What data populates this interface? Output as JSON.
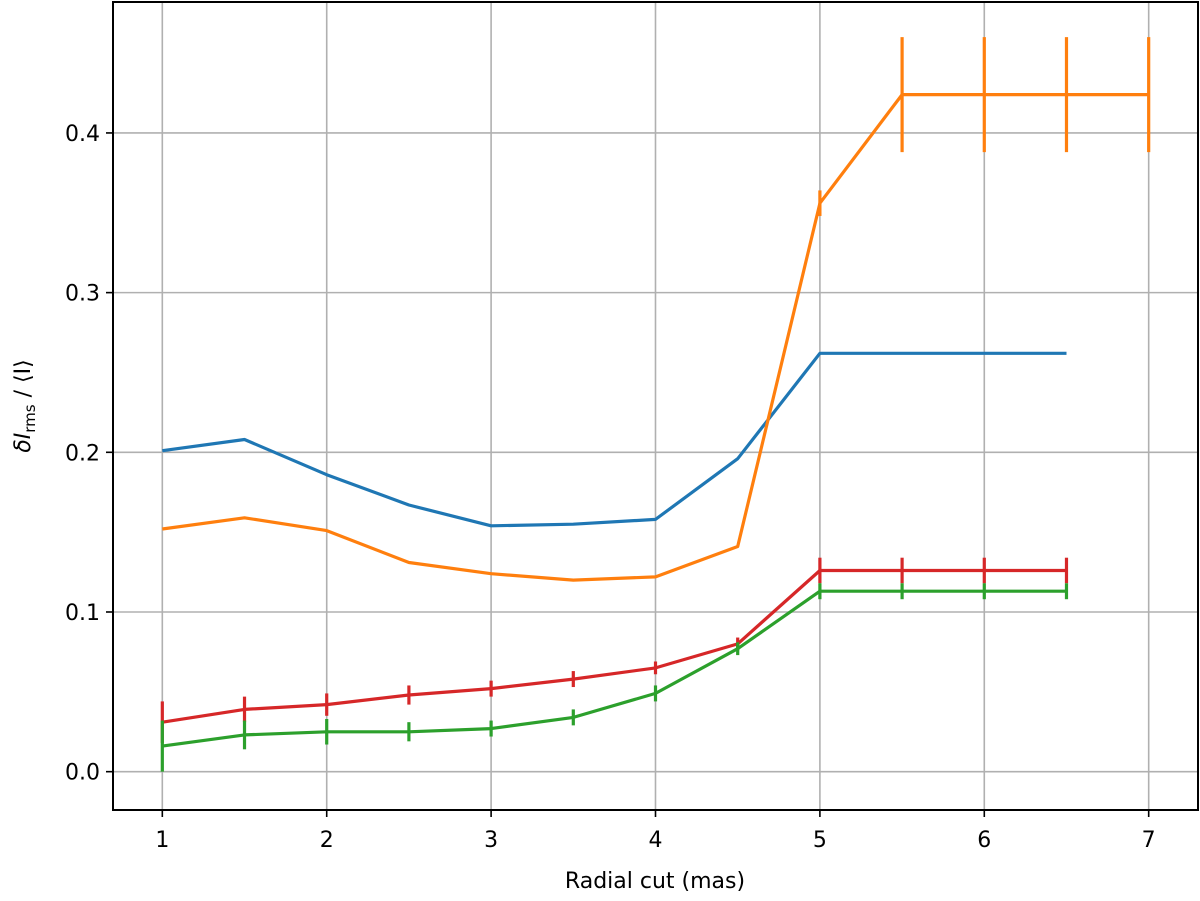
{
  "chart_data": {
    "type": "line",
    "xlabel": "Radial cut (mas)",
    "ylabel_main": "δI",
    "ylabel_sub": "rms",
    "ylabel_tail": " / ⟨I⟩",
    "xlim": [
      0.7,
      7.3
    ],
    "ylim": [
      -0.024,
      0.482
    ],
    "x_ticks": [
      1,
      2,
      3,
      4,
      5,
      6,
      7
    ],
    "y_ticks": [
      0.0,
      0.1,
      0.2,
      0.3,
      0.4
    ],
    "x_tick_labels": [
      "1",
      "2",
      "3",
      "4",
      "5",
      "6",
      "7"
    ],
    "y_tick_labels": [
      "0.0",
      "0.1",
      "0.2",
      "0.3",
      "0.4"
    ],
    "grid": true,
    "series": [
      {
        "color": "#1f77b4",
        "x": [
          1,
          1.5,
          2,
          2.5,
          3,
          3.5,
          4,
          4.5,
          5,
          5.5,
          6,
          6.5
        ],
        "y": [
          0.201,
          0.208,
          0.186,
          0.167,
          0.154,
          0.155,
          0.158,
          0.196,
          0.262,
          0.262,
          0.262,
          0.262
        ],
        "yerr": null
      },
      {
        "color": "#ff7f0e",
        "x": [
          1,
          1.5,
          2,
          2.5,
          3,
          3.5,
          4,
          4.5,
          5,
          5.5,
          6,
          6.5,
          7
        ],
        "y": [
          0.152,
          0.159,
          0.151,
          0.131,
          0.124,
          0.12,
          0.122,
          0.141,
          0.356,
          0.424,
          0.424,
          0.424,
          0.424
        ],
        "yerr": [
          0,
          0,
          0,
          0,
          0,
          0,
          0,
          0,
          0.008,
          0.036,
          0.036,
          0.036,
          0.036
        ]
      },
      {
        "color": "#d62728",
        "x": [
          1,
          1.5,
          2,
          2.5,
          3,
          3.5,
          4,
          4.5,
          5,
          5.5,
          6,
          6.5
        ],
        "y": [
          0.031,
          0.039,
          0.042,
          0.048,
          0.052,
          0.058,
          0.065,
          0.08,
          0.126,
          0.126,
          0.126,
          0.126
        ],
        "yerr": [
          0.013,
          0.008,
          0.007,
          0.006,
          0.005,
          0.005,
          0.004,
          0.004,
          0.008,
          0.008,
          0.008,
          0.008
        ]
      },
      {
        "color": "#2ca02c",
        "x": [
          1,
          1.5,
          2,
          2.5,
          3,
          3.5,
          4,
          4.5,
          5,
          5.5,
          6,
          6.5
        ],
        "y": [
          0.016,
          0.023,
          0.025,
          0.025,
          0.027,
          0.034,
          0.049,
          0.077,
          0.113,
          0.113,
          0.113,
          0.113
        ],
        "yerr": [
          0.016,
          0.009,
          0.008,
          0.006,
          0.005,
          0.005,
          0.005,
          0.004,
          0.005,
          0.005,
          0.005,
          0.005
        ]
      }
    ]
  }
}
